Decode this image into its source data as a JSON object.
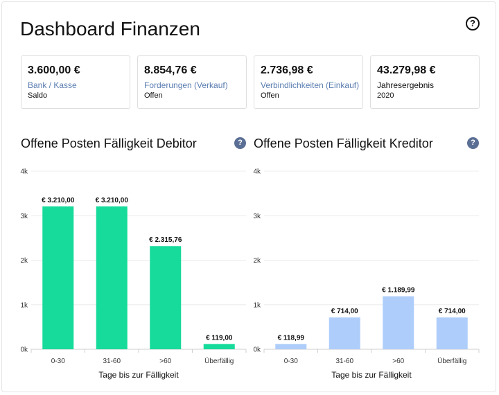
{
  "page": {
    "title": "Dashboard Finanzen",
    "help_symbol": "?"
  },
  "kpis": [
    {
      "value": "3.600,00 €",
      "label": "Bank / Kasse",
      "sub": "Saldo"
    },
    {
      "value": "8.854,76 €",
      "label": "Forderungen (Verkauf)",
      "sub": "Offen"
    },
    {
      "value": "2.736,98 €",
      "label": "Verbindlichkeiten (Einkauf)",
      "sub": "Offen"
    },
    {
      "value": "43.279,98 €",
      "label": "Jahresergebnis",
      "sub": "2020"
    }
  ],
  "colors": {
    "debitor": "#16db9a",
    "kreditor": "#aecdfa",
    "kpi_label": "#5a7db0",
    "help_badge": "#5b6f95"
  },
  "chart_data": [
    {
      "type": "bar",
      "title": "Offene Posten Fälligkeit Debitor",
      "xlabel": "Tage bis zur Fälligkeit",
      "categories": [
        "0-30",
        "31-60",
        ">60",
        "Überfällig"
      ],
      "values": [
        3210.0,
        3210.0,
        2315.76,
        119.0
      ],
      "value_labels": [
        "€ 3.210,00",
        "€ 3.210,00",
        "€ 2.315,76",
        "€ 119,00"
      ],
      "yticks": [
        0,
        1000,
        2000,
        3000,
        4000
      ],
      "ytick_labels": [
        "0k",
        "1k",
        "2k",
        "3k",
        "4k"
      ],
      "ylim": [
        0,
        4000
      ],
      "grid": true
    },
    {
      "type": "bar",
      "title": "Offene Posten Fälligkeit Kreditor",
      "xlabel": "Tage bis zur Fälligkeit",
      "categories": [
        "0-30",
        "31-60",
        ">60",
        "Überfällig"
      ],
      "values": [
        118.99,
        714.0,
        1189.99,
        714.0
      ],
      "value_labels": [
        "€ 118,99",
        "€ 714,00",
        "€ 1.189,99",
        "€ 714,00"
      ],
      "yticks": [
        0,
        1000,
        2000,
        3000,
        4000
      ],
      "ytick_labels": [
        "0k",
        "1k",
        "2k",
        "3k",
        "4k"
      ],
      "ylim": [
        0,
        4000
      ],
      "grid": true
    }
  ]
}
